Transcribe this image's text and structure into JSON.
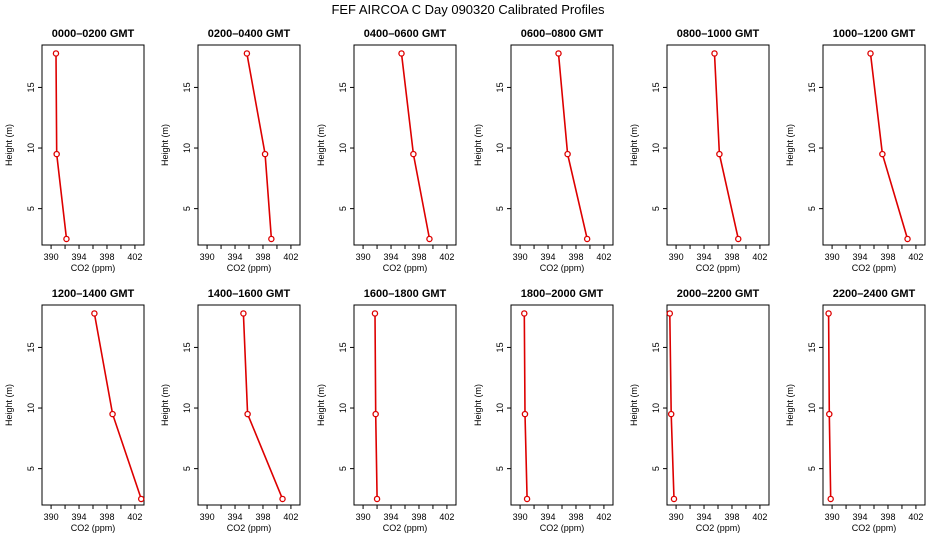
{
  "figure_title": "FEF AIRCOA C  Day 090320  Calibrated Profiles",
  "colors": {
    "series": "#dd0000",
    "axes": "#000000"
  },
  "chart_data": [
    {
      "type": "line",
      "title": "0000–0200 GMT",
      "xlabel": "CO2 (ppm)",
      "ylabel": "Height (m)",
      "xlim": [
        388.7,
        403.3
      ],
      "ylim": [
        2,
        18.5
      ],
      "xticks": [
        390,
        394,
        398,
        402
      ],
      "yticks": [
        5,
        10,
        15
      ],
      "points": [
        {
          "x": 390.7,
          "y": 17.8
        },
        {
          "x": 390.8,
          "y": 9.5
        },
        {
          "x": 392.2,
          "y": 2.5
        }
      ]
    },
    {
      "type": "line",
      "title": "0200–0400 GMT",
      "xlabel": "CO2 (ppm)",
      "ylabel": "Height (m)",
      "xlim": [
        388.7,
        403.3
      ],
      "ylim": [
        2,
        18.5
      ],
      "xticks": [
        390,
        394,
        398,
        402
      ],
      "yticks": [
        5,
        10,
        15
      ],
      "points": [
        {
          "x": 395.7,
          "y": 17.8
        },
        {
          "x": 398.3,
          "y": 9.5
        },
        {
          "x": 399.2,
          "y": 2.5
        }
      ]
    },
    {
      "type": "line",
      "title": "0400–0600 GMT",
      "xlabel": "CO2 (ppm)",
      "ylabel": "Height (m)",
      "xlim": [
        388.7,
        403.3
      ],
      "ylim": [
        2,
        18.5
      ],
      "xticks": [
        390,
        394,
        398,
        402
      ],
      "yticks": [
        5,
        10,
        15
      ],
      "points": [
        {
          "x": 395.5,
          "y": 17.8
        },
        {
          "x": 397.2,
          "y": 9.5
        },
        {
          "x": 399.5,
          "y": 2.5
        }
      ]
    },
    {
      "type": "line",
      "title": "0600–0800 GMT",
      "xlabel": "CO2 (ppm)",
      "ylabel": "Height (m)",
      "xlim": [
        388.7,
        403.3
      ],
      "ylim": [
        2,
        18.5
      ],
      "xticks": [
        390,
        394,
        398,
        402
      ],
      "yticks": [
        5,
        10,
        15
      ],
      "points": [
        {
          "x": 395.5,
          "y": 17.8
        },
        {
          "x": 396.8,
          "y": 9.5
        },
        {
          "x": 399.6,
          "y": 2.5
        }
      ]
    },
    {
      "type": "line",
      "title": "0800–1000 GMT",
      "xlabel": "CO2 (ppm)",
      "ylabel": "Height (m)",
      "xlim": [
        388.7,
        403.3
      ],
      "ylim": [
        2,
        18.5
      ],
      "xticks": [
        390,
        394,
        398,
        402
      ],
      "yticks": [
        5,
        10,
        15
      ],
      "points": [
        {
          "x": 395.5,
          "y": 17.8
        },
        {
          "x": 396.2,
          "y": 9.5
        },
        {
          "x": 398.9,
          "y": 2.5
        }
      ]
    },
    {
      "type": "line",
      "title": "1000–1200 GMT",
      "xlabel": "CO2 (ppm)",
      "ylabel": "Height (m)",
      "xlim": [
        388.7,
        403.3
      ],
      "ylim": [
        2,
        18.5
      ],
      "xticks": [
        390,
        394,
        398,
        402
      ],
      "yticks": [
        5,
        10,
        15
      ],
      "points": [
        {
          "x": 395.5,
          "y": 17.8
        },
        {
          "x": 397.2,
          "y": 9.5
        },
        {
          "x": 400.8,
          "y": 2.5
        }
      ]
    },
    {
      "type": "line",
      "title": "1200–1400 GMT",
      "xlabel": "CO2 (ppm)",
      "ylabel": "Height (m)",
      "xlim": [
        388.7,
        403.3
      ],
      "ylim": [
        2,
        18.5
      ],
      "xticks": [
        390,
        394,
        398,
        402
      ],
      "yticks": [
        5,
        10,
        15
      ],
      "points": [
        {
          "x": 396.2,
          "y": 17.8
        },
        {
          "x": 398.8,
          "y": 9.5
        },
        {
          "x": 402.9,
          "y": 2.5
        }
      ]
    },
    {
      "type": "line",
      "title": "1400–1600 GMT",
      "xlabel": "CO2 (ppm)",
      "ylabel": "Height (m)",
      "xlim": [
        388.7,
        403.3
      ],
      "ylim": [
        2,
        18.5
      ],
      "xticks": [
        390,
        394,
        398,
        402
      ],
      "yticks": [
        5,
        10,
        15
      ],
      "points": [
        {
          "x": 395.2,
          "y": 17.8
        },
        {
          "x": 395.8,
          "y": 9.5
        },
        {
          "x": 400.8,
          "y": 2.5
        }
      ]
    },
    {
      "type": "line",
      "title": "1600–1800 GMT",
      "xlabel": "CO2 (ppm)",
      "ylabel": "Height (m)",
      "xlim": [
        388.7,
        403.3
      ],
      "ylim": [
        2,
        18.5
      ],
      "xticks": [
        390,
        394,
        398,
        402
      ],
      "yticks": [
        5,
        10,
        15
      ],
      "points": [
        {
          "x": 391.7,
          "y": 17.8
        },
        {
          "x": 391.8,
          "y": 9.5
        },
        {
          "x": 392.0,
          "y": 2.5
        }
      ]
    },
    {
      "type": "line",
      "title": "1800–2000 GMT",
      "xlabel": "CO2 (ppm)",
      "ylabel": "Height (m)",
      "xlim": [
        388.7,
        403.3
      ],
      "ylim": [
        2,
        18.5
      ],
      "xticks": [
        390,
        394,
        398,
        402
      ],
      "yticks": [
        5,
        10,
        15
      ],
      "points": [
        {
          "x": 390.6,
          "y": 17.8
        },
        {
          "x": 390.7,
          "y": 9.5
        },
        {
          "x": 391.0,
          "y": 2.5
        }
      ]
    },
    {
      "type": "line",
      "title": "2000–2200 GMT",
      "xlabel": "CO2 (ppm)",
      "ylabel": "Height (m)",
      "xlim": [
        388.7,
        403.3
      ],
      "ylim": [
        2,
        18.5
      ],
      "xticks": [
        390,
        394,
        398,
        402
      ],
      "yticks": [
        5,
        10,
        15
      ],
      "points": [
        {
          "x": 389.1,
          "y": 17.8
        },
        {
          "x": 389.3,
          "y": 9.5
        },
        {
          "x": 389.7,
          "y": 2.5
        }
      ]
    },
    {
      "type": "line",
      "title": "2200–2400 GMT",
      "xlabel": "CO2 (ppm)",
      "ylabel": "Height (m)",
      "xlim": [
        388.7,
        403.3
      ],
      "ylim": [
        2,
        18.5
      ],
      "xticks": [
        390,
        394,
        398,
        402
      ],
      "yticks": [
        5,
        10,
        15
      ],
      "points": [
        {
          "x": 389.5,
          "y": 17.8
        },
        {
          "x": 389.6,
          "y": 9.5
        },
        {
          "x": 389.8,
          "y": 2.5
        }
      ]
    }
  ]
}
